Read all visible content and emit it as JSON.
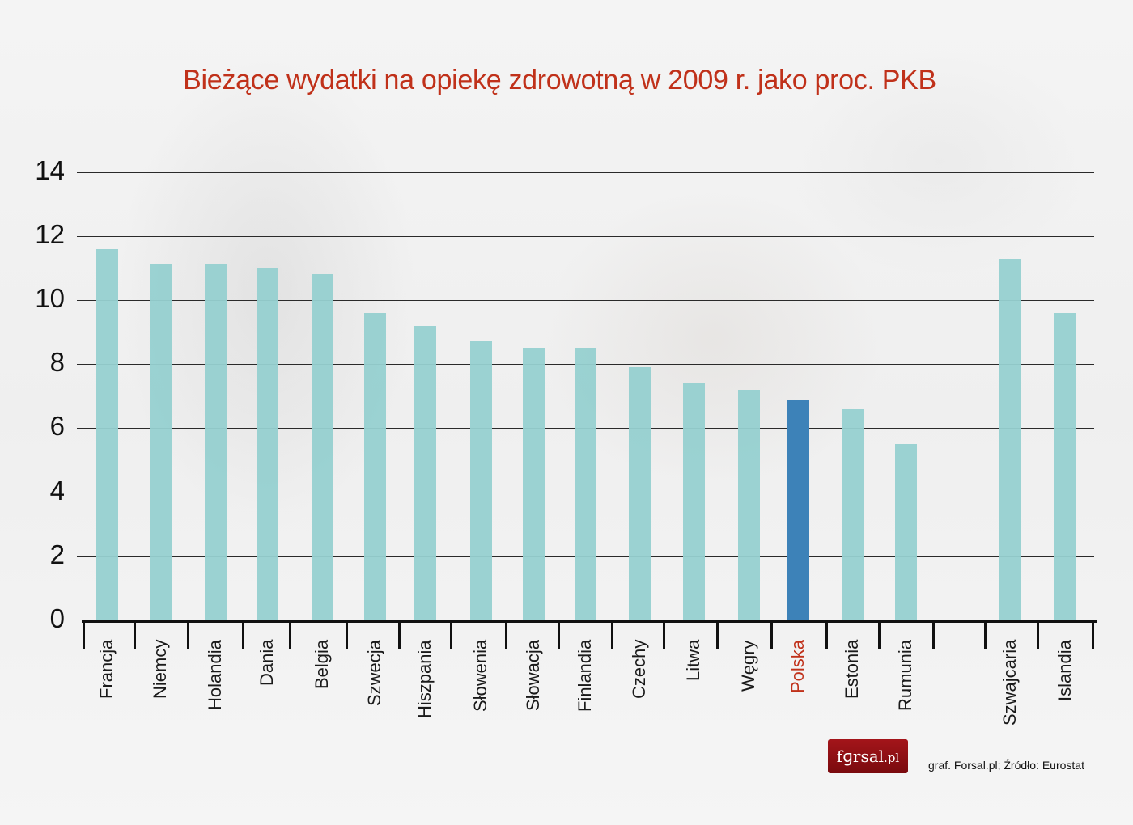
{
  "title": "Bieżące wydatki na opiekę zdrowotną w 2009 r. jako proc. PKB",
  "colors": {
    "title": "#c0311a",
    "bar": "#96d0d0",
    "bar_highlight": "#3d82b8",
    "label_highlight": "#c0311a",
    "logo_bg": "#8f0f14"
  },
  "logo": {
    "text": "f⁠ɡrsal.pl"
  },
  "source": "graf. Forsal.pl;  Źródło: Eurostat",
  "chart_data": {
    "type": "bar",
    "title": "Bieżące wydatki na opiekę zdrowotną w 2009 r. jako proc. PKB",
    "xlabel": "",
    "ylabel": "",
    "ylim": [
      0,
      14
    ],
    "yticks": [
      0,
      2,
      4,
      6,
      8,
      10,
      12,
      14
    ],
    "grid": true,
    "legend": null,
    "categories": [
      "Francja",
      "Niemcy",
      "Holandia",
      "Dania",
      "Belgia",
      "Szwecja",
      "Hiszpania",
      "Słowenia",
      "Słowacja",
      "Finlandia",
      "Czechy",
      "Litwa",
      "Węgry",
      "Polska",
      "Estonia",
      "Rumunia",
      "",
      "Szwajcaria",
      "Islandia"
    ],
    "values": [
      11.6,
      11.1,
      11.1,
      11.0,
      10.8,
      9.6,
      9.2,
      8.7,
      8.5,
      8.5,
      7.9,
      7.4,
      7.2,
      6.9,
      6.6,
      5.5,
      null,
      11.3,
      9.6
    ],
    "highlight": "Polska"
  }
}
